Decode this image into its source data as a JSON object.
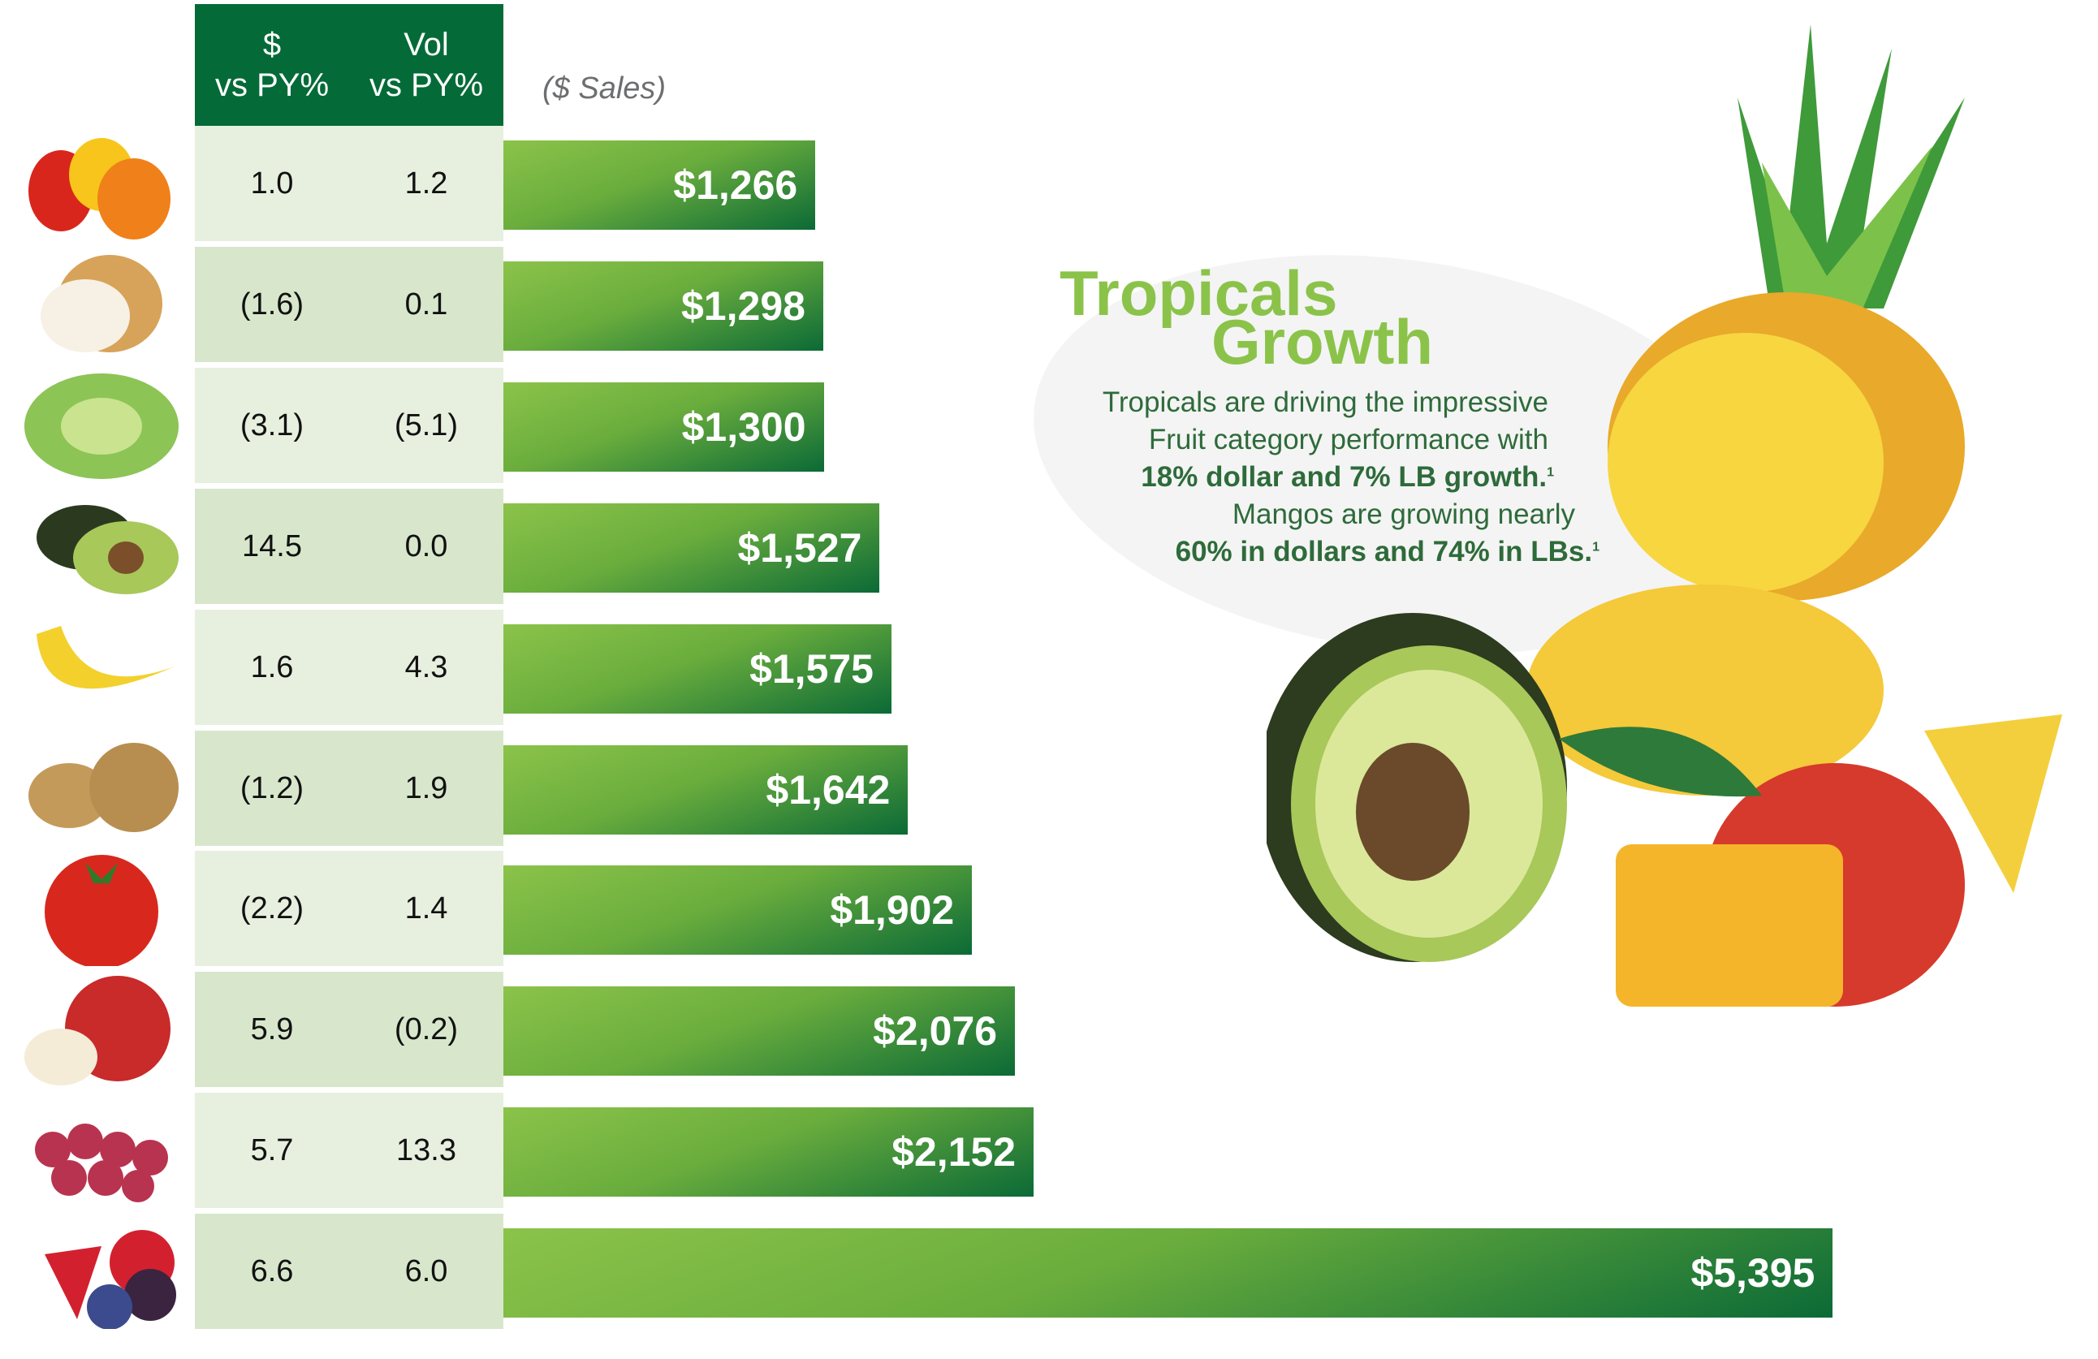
{
  "header": {
    "col1_line1": "$",
    "col1_line2": "vs PY%",
    "col2_line1": "Vol",
    "col2_line2": "vs PY%",
    "units": "($ Sales)"
  },
  "colors": {
    "header": "#046b38",
    "row_light": "#e7f0df",
    "row_dark": "#d8e7cc",
    "bar_light": "#8bc34a",
    "bar_dark": "#0b6a36",
    "title": "#8bc34a",
    "body_text": "#2e6b3a"
  },
  "chart_data": {
    "type": "bar",
    "orientation": "horizontal",
    "units": "($ Sales)",
    "columns": [
      "$ vs PY%",
      "Vol vs PY%"
    ],
    "rows": [
      {
        "icon": "bell-peppers-image",
        "dollar_vs_py": "1.0",
        "vol_vs_py": "1.2",
        "value": 1266,
        "label": "$1,266"
      },
      {
        "icon": "onion-image",
        "dollar_vs_py": "(1.6)",
        "vol_vs_py": "0.1",
        "value": 1298,
        "label": "$1,298"
      },
      {
        "icon": "lettuce-image",
        "dollar_vs_py": "(3.1)",
        "vol_vs_py": "(5.1)",
        "value": 1300,
        "label": "$1,300"
      },
      {
        "icon": "avocado-image",
        "dollar_vs_py": "14.5",
        "vol_vs_py": "0.0",
        "value": 1527,
        "label": "$1,527"
      },
      {
        "icon": "bananas-image",
        "dollar_vs_py": "1.6",
        "vol_vs_py": "4.3",
        "value": 1575,
        "label": "$1,575"
      },
      {
        "icon": "potatoes-image",
        "dollar_vs_py": "(1.2)",
        "vol_vs_py": "1.9",
        "value": 1642,
        "label": "$1,642"
      },
      {
        "icon": "tomato-image",
        "dollar_vs_py": "(2.2)",
        "vol_vs_py": "1.4",
        "value": 1902,
        "label": "$1,902"
      },
      {
        "icon": "apple-image",
        "dollar_vs_py": "5.9",
        "vol_vs_py": "(0.2)",
        "value": 2076,
        "label": "$2,076"
      },
      {
        "icon": "grapes-image",
        "dollar_vs_py": "5.7",
        "vol_vs_py": "13.3",
        "value": 2152,
        "label": "$2,152"
      },
      {
        "icon": "berries-image",
        "dollar_vs_py": "6.6",
        "vol_vs_py": "6.0",
        "value": 5395,
        "label": "$5,395"
      }
    ]
  },
  "callout": {
    "title_line1": "Tropicals",
    "title_line2": "Growth",
    "line1": "Tropicals are driving the impressive",
    "line2": "Fruit category performance with",
    "line3": "18% dollar and 7% LB growth.",
    "line4": "Mangos are growing nearly",
    "line5": "60% in dollars and 74% in LBs.",
    "footnote": "1"
  }
}
